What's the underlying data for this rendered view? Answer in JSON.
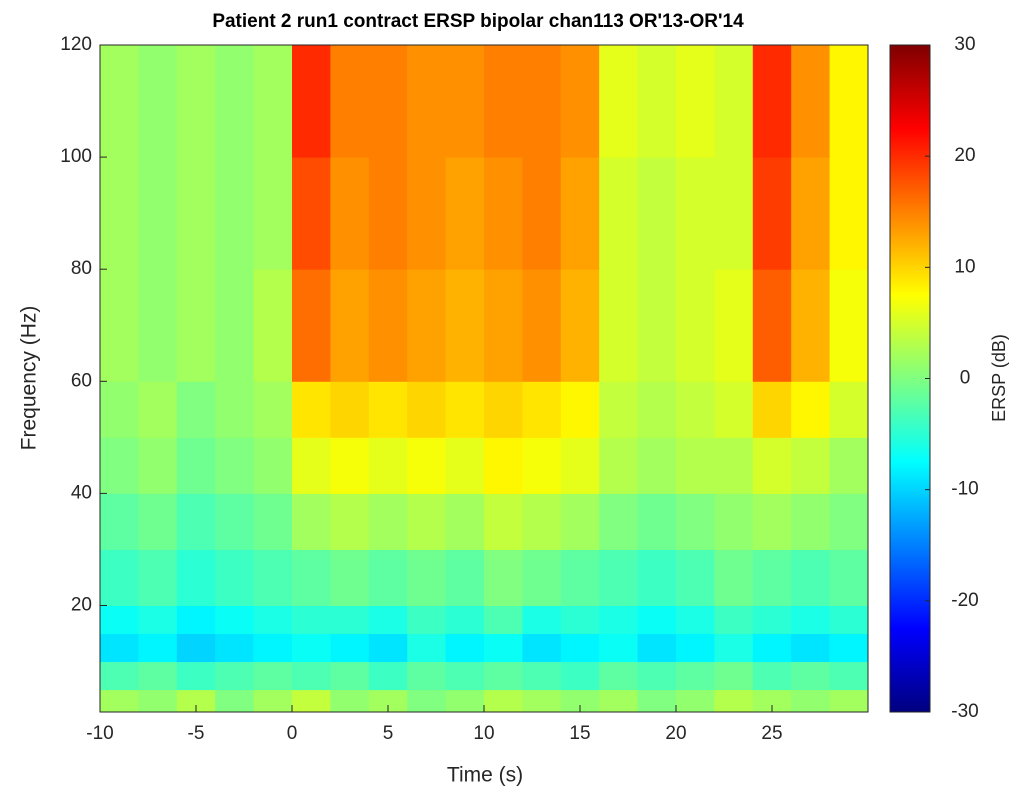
{
  "chart_data": {
    "type": "heatmap",
    "title": "Patient 2 run1 contract ERSP bipolar chan113 OR'13-OR'14",
    "x_label": "Time (s)",
    "y_label": "Frequency (Hz)",
    "colorbar_label": "ERSP (dB)",
    "xlim": [
      -10,
      30
    ],
    "xticks": [
      -10,
      -5,
      0,
      5,
      10,
      15,
      20,
      25
    ],
    "ylim": [
      1,
      120
    ],
    "yticks": [
      20,
      40,
      60,
      80,
      100,
      120
    ],
    "clim": [
      -30,
      30
    ],
    "cticks": [
      -30,
      -20,
      -10,
      0,
      10,
      20,
      30
    ],
    "colormap": "jet",
    "xbins": [
      -10,
      -8,
      -6,
      -4,
      -2,
      0,
      2,
      4,
      6,
      8,
      10,
      12,
      14,
      16,
      18,
      20,
      22,
      24,
      26,
      28,
      30
    ],
    "ybins": [
      1,
      5,
      10,
      15,
      20,
      30,
      40,
      50,
      60,
      80,
      100,
      120
    ],
    "z": [
      [
        2,
        1,
        3,
        0,
        2,
        4,
        1,
        2,
        0,
        1,
        3,
        2,
        1,
        2,
        0,
        1,
        3,
        2,
        1,
        2
      ],
      [
        -3,
        -2,
        -4,
        -3,
        -2,
        -3,
        -2,
        -4,
        -2,
        -3,
        -2,
        -3,
        -4,
        -2,
        -3,
        -2,
        -1,
        -3,
        -2,
        -3
      ],
      [
        -9,
        -8,
        -10,
        -9,
        -8,
        -7,
        -8,
        -9,
        -6,
        -8,
        -7,
        -9,
        -8,
        -7,
        -9,
        -8,
        -6,
        -8,
        -9,
        -8
      ],
      [
        -7,
        -6,
        -8,
        -7,
        -6,
        -5,
        -5,
        -6,
        -4,
        -5,
        -3,
        -6,
        -5,
        -6,
        -7,
        -6,
        -4,
        -5,
        -6,
        -5
      ],
      [
        -4,
        -3,
        -5,
        -4,
        -3,
        -2,
        -1,
        -2,
        -1,
        -2,
        0,
        -1,
        -2,
        -3,
        -4,
        -3,
        -1,
        -2,
        -3,
        -2
      ],
      [
        -2,
        -1,
        -3,
        -2,
        -1,
        2,
        3,
        2,
        3,
        2,
        4,
        3,
        2,
        0,
        -1,
        0,
        1,
        2,
        1,
        0
      ],
      [
        0,
        1,
        -1,
        0,
        1,
        6,
        7,
        6,
        7,
        6,
        8,
        7,
        6,
        3,
        2,
        3,
        3,
        5,
        4,
        2
      ],
      [
        1,
        2,
        0,
        1,
        2,
        9,
        10,
        9,
        10,
        9,
        10,
        9,
        8,
        4,
        3,
        4,
        5,
        10,
        8,
        5
      ],
      [
        2,
        1,
        2,
        1,
        3,
        16,
        13,
        14,
        13,
        12,
        13,
        14,
        12,
        5,
        4,
        5,
        6,
        17,
        12,
        7
      ],
      [
        2,
        1,
        2,
        1,
        2,
        18,
        14,
        15,
        14,
        13,
        14,
        15,
        13,
        5,
        4,
        5,
        5,
        19,
        13,
        8
      ],
      [
        2,
        1,
        2,
        1,
        2,
        20,
        15,
        15,
        14,
        14,
        15,
        15,
        14,
        6,
        5,
        6,
        5,
        20,
        14,
        8
      ]
    ]
  }
}
